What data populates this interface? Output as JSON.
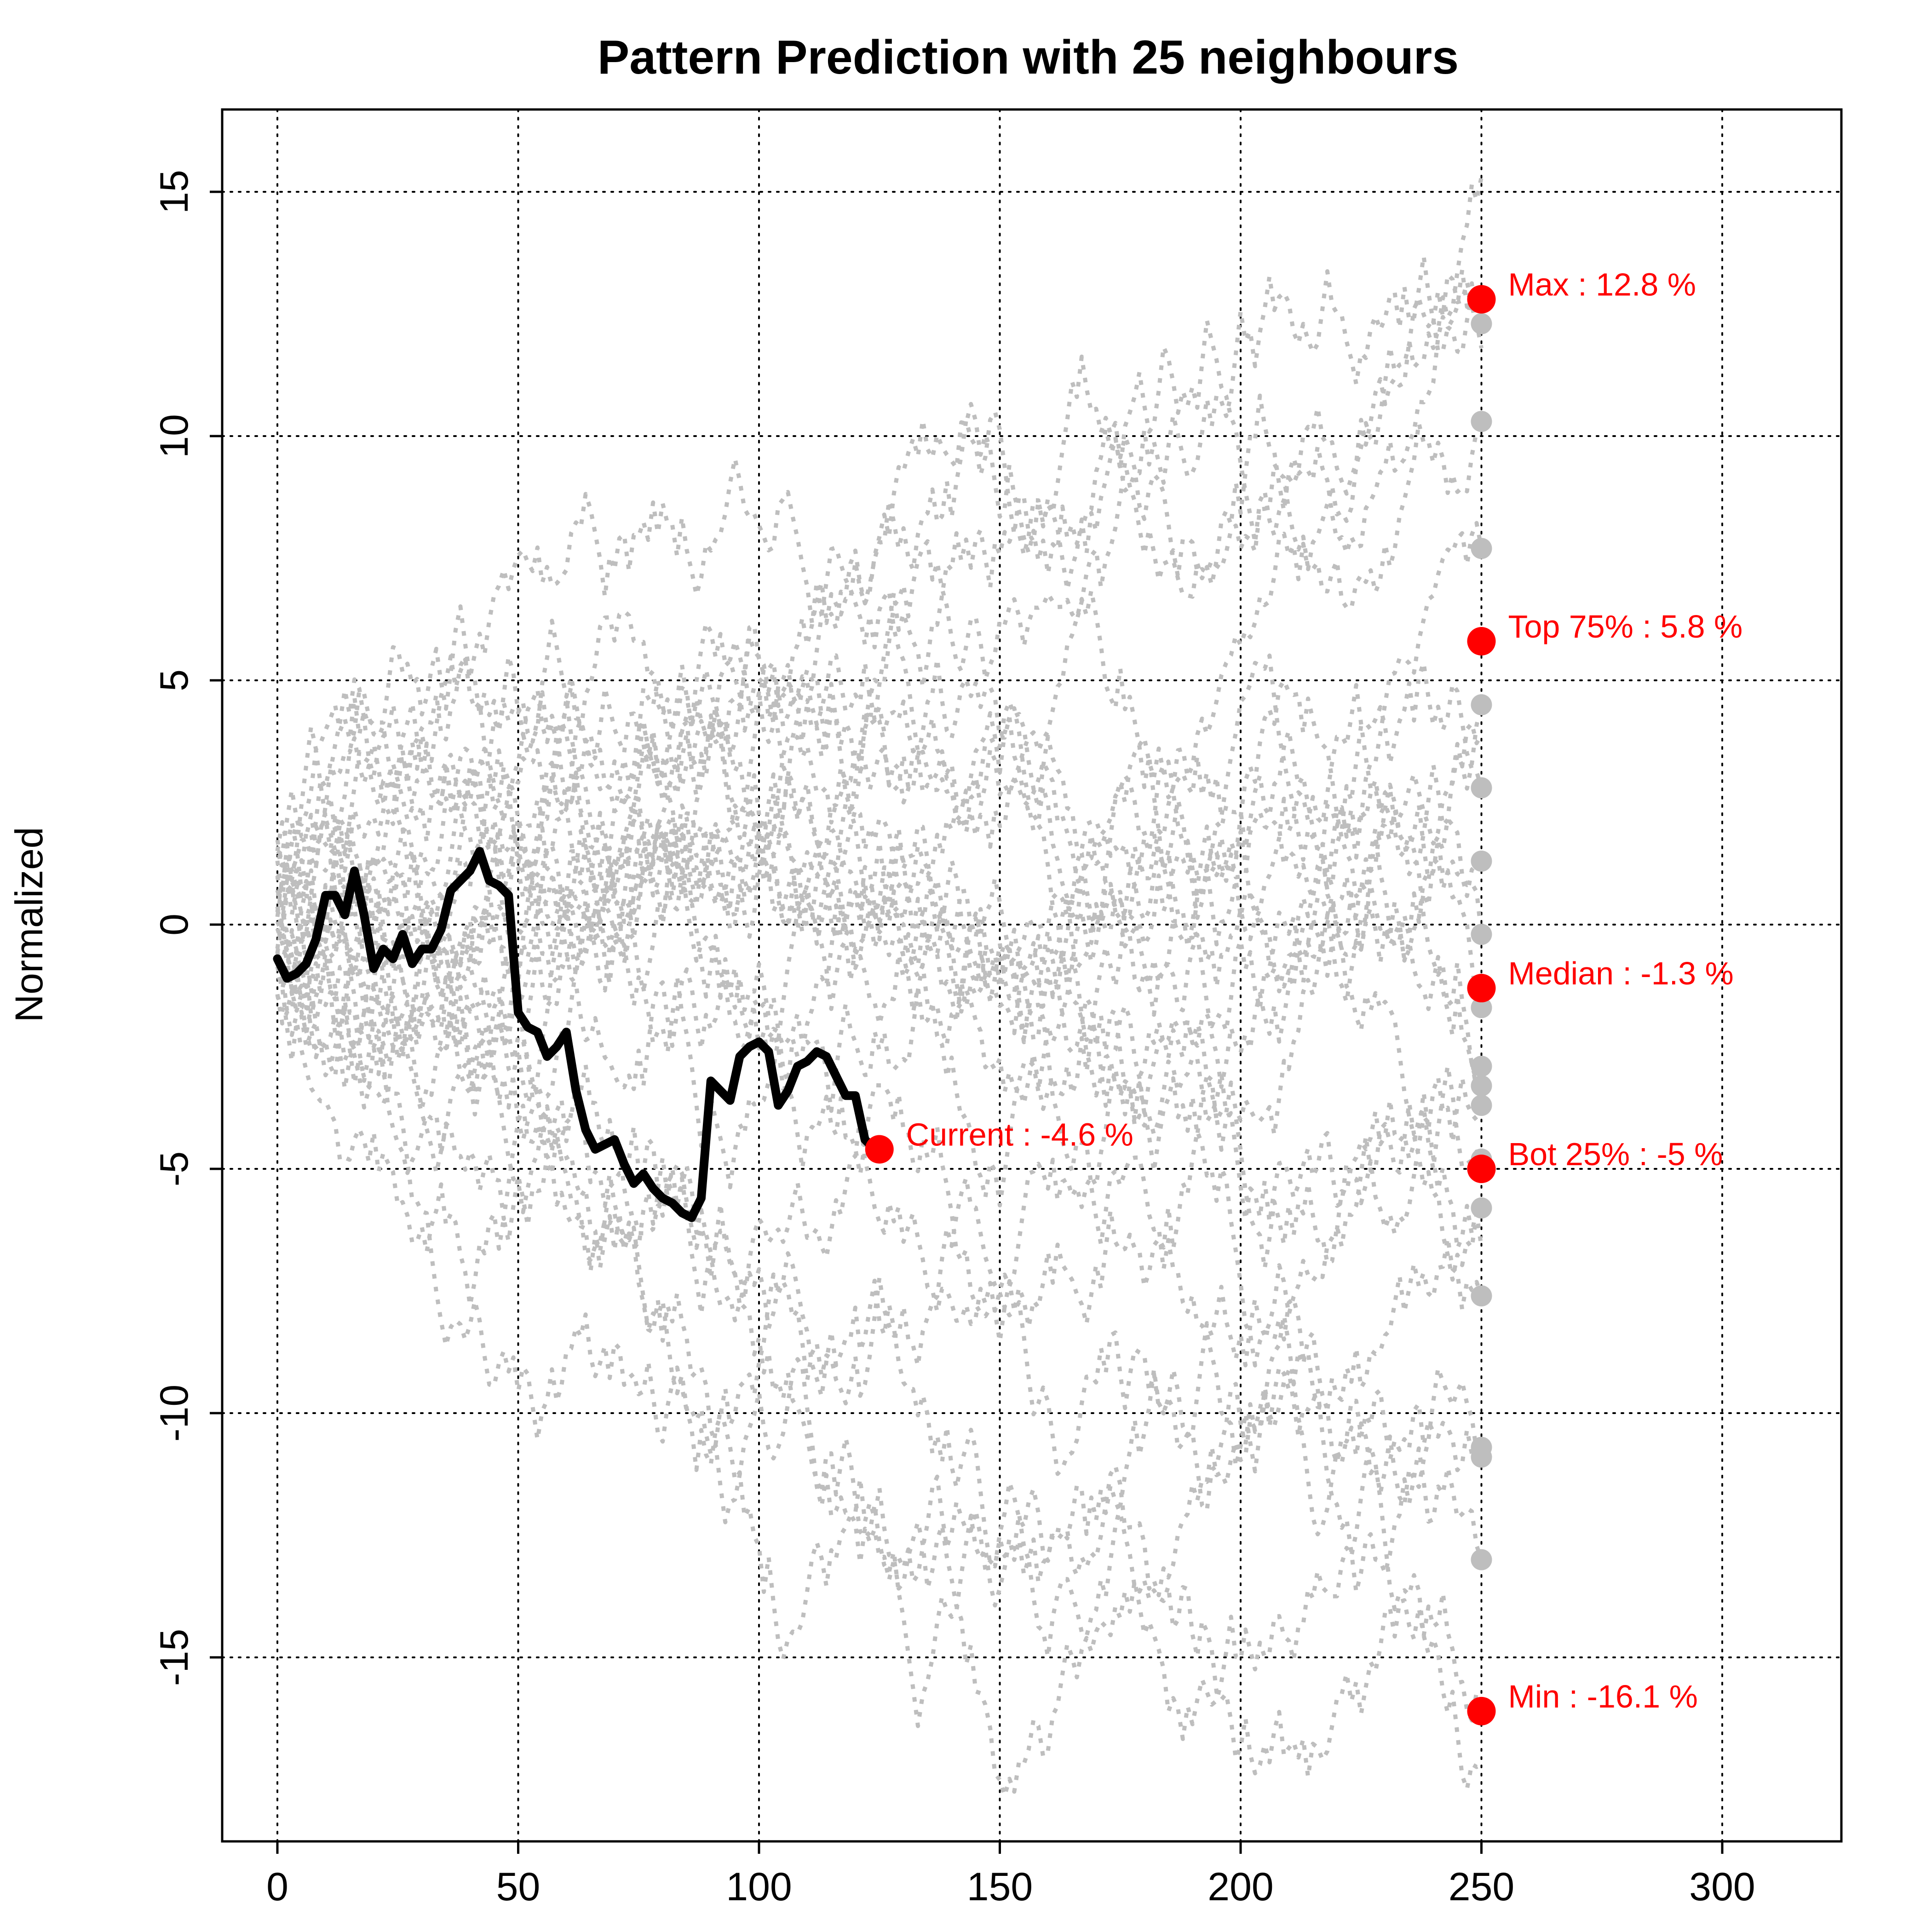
{
  "chart_data": {
    "type": "line",
    "title": "Pattern Prediction with 25 neighbours",
    "xlabel": "",
    "ylabel": "Normalized",
    "xlim": [
      -11,
      325
    ],
    "ylim": [
      -18.2,
      16.7
    ],
    "x_ticks": [
      0,
      50,
      100,
      150,
      200,
      250,
      300
    ],
    "y_ticks": [
      -15,
      -10,
      -5,
      0,
      5,
      10,
      15
    ],
    "grid": true,
    "current_series": {
      "x": [
        0,
        2,
        4,
        6,
        8,
        10,
        12,
        14,
        16,
        18,
        20,
        22,
        24,
        26,
        28,
        30,
        32,
        34,
        36,
        38,
        40,
        42,
        44,
        46,
        48,
        50,
        52,
        54,
        56,
        58,
        60,
        62,
        64,
        66,
        68,
        70,
        72,
        74,
        76,
        78,
        80,
        82,
        84,
        86,
        88,
        90,
        92,
        94,
        96,
        98,
        100,
        102,
        104,
        106,
        108,
        110,
        112,
        114,
        116,
        118,
        120,
        122,
        124,
        125
      ],
      "y": [
        -0.7,
        -1.1,
        -1.0,
        -0.8,
        -0.3,
        0.6,
        0.6,
        0.2,
        1.1,
        0.2,
        -0.9,
        -0.5,
        -0.7,
        -0.2,
        -0.8,
        -0.5,
        -0.5,
        -0.1,
        0.7,
        0.9,
        1.1,
        1.5,
        0.9,
        0.8,
        0.6,
        -1.8,
        -2.1,
        -2.2,
        -2.7,
        -2.5,
        -2.2,
        -3.4,
        -4.2,
        -4.6,
        -4.5,
        -4.4,
        -4.9,
        -5.3,
        -5.1,
        -5.4,
        -5.6,
        -5.7,
        -5.9,
        -6.0,
        -5.6,
        -3.2,
        -3.4,
        -3.6,
        -2.7,
        -2.5,
        -2.4,
        -2.6,
        -3.7,
        -3.4,
        -2.9,
        -2.8,
        -2.6,
        -2.7,
        -3.1,
        -3.5,
        -3.5,
        -4.4,
        -4.6,
        -4.6
      ]
    },
    "annotations": [
      {
        "label": "Current : -4.6 %",
        "x": 125,
        "y": -4.6
      },
      {
        "label": "Max : 12.8 %",
        "x": 250,
        "y": 12.8
      },
      {
        "label": "Top 75% : 5.8 %",
        "x": 250,
        "y": 5.8
      },
      {
        "label": "Median : -1.3 %",
        "x": 250,
        "y": -1.3
      },
      {
        "label": "Bot 25% : -5 %",
        "x": 250,
        "y": -5.0
      },
      {
        "label": "Min : -16.1 %",
        "x": 250,
        "y": -16.1
      }
    ],
    "neighbour_endpoints": [
      12.3,
      10.3,
      7.7,
      4.5,
      2.8,
      1.3,
      -0.2,
      -1.7,
      -2.9,
      -3.3,
      -3.7,
      -4.8,
      -5.8,
      -7.6,
      -10.7,
      -10.9,
      -13.0
    ],
    "neighbour_count": 25,
    "colors": {
      "current": "#000000",
      "neighbours": "#bebebe",
      "annotation": "#ff0000",
      "neighbour_endpoint": "#bebebe"
    }
  }
}
